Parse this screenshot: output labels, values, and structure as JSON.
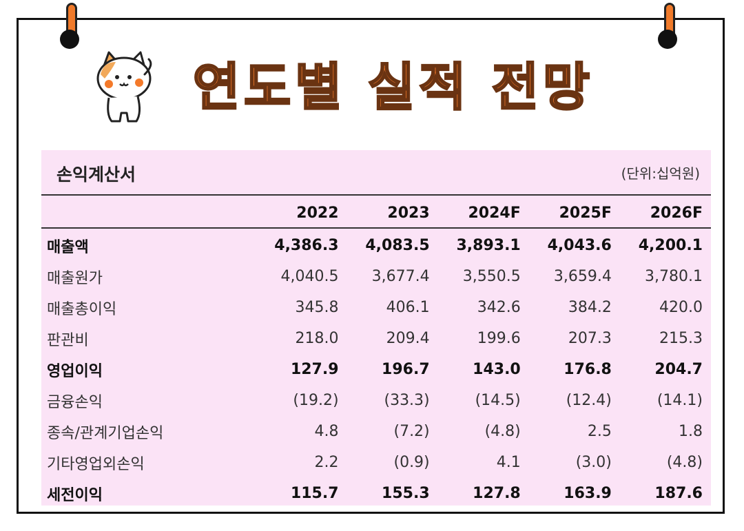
{
  "header": {
    "title": "연도별 실적 전망"
  },
  "table": {
    "caption": "손익계산서",
    "unit": "(단위:십억원)",
    "columns": [
      "2022",
      "2023",
      "2024F",
      "2025F",
      "2026F"
    ],
    "rows": [
      {
        "label": "매출액",
        "bold": true,
        "values": [
          "4,386.3",
          "4,083.5",
          "3,893.1",
          "4,043.6",
          "4,200.1"
        ]
      },
      {
        "label": "매출원가",
        "bold": false,
        "values": [
          "4,040.5",
          "3,677.4",
          "3,550.5",
          "3,659.4",
          "3,780.1"
        ]
      },
      {
        "label": "매출총이익",
        "bold": false,
        "values": [
          "345.8",
          "406.1",
          "342.6",
          "384.2",
          "420.0"
        ]
      },
      {
        "label": "판관비",
        "bold": false,
        "values": [
          "218.0",
          "209.4",
          "199.6",
          "207.3",
          "215.3"
        ]
      },
      {
        "label": "영업이익",
        "bold": true,
        "values": [
          "127.9",
          "196.7",
          "143.0",
          "176.8",
          "204.7"
        ]
      },
      {
        "label": "금융손익",
        "bold": false,
        "values": [
          "(19.2)",
          "(33.3)",
          "(14.5)",
          "(12.4)",
          "(14.1)"
        ]
      },
      {
        "label": "종속/관계기업손익",
        "bold": false,
        "values": [
          "4.8",
          "(7.2)",
          "(4.8)",
          "2.5",
          "1.8"
        ]
      },
      {
        "label": "기타영업외손익",
        "bold": false,
        "values": [
          "2.2",
          "(0.9)",
          "4.1",
          "(3.0)",
          "(4.8)"
        ]
      },
      {
        "label": "세전이익",
        "bold": true,
        "values": [
          "115.7",
          "155.3",
          "127.8",
          "163.9",
          "187.6"
        ]
      }
    ]
  },
  "colors": {
    "title_fill": "#f47a2a",
    "panel_background": "#fbe3f6",
    "pin": "#f07a2a"
  },
  "icons": {
    "mascot": "cat-mascot-icon",
    "pins": "binder-ring-icon"
  }
}
